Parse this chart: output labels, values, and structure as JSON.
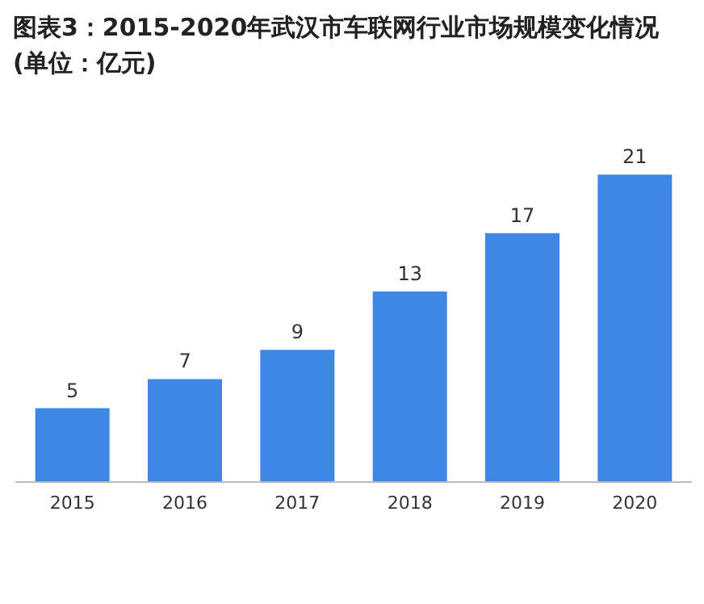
{
  "chart_data": {
    "type": "bar",
    "title": "图表3：2015-2020年武汉市车联网行业市场规模变化情况(单位：亿元)",
    "categories": [
      "2015",
      "2016",
      "2017",
      "2018",
      "2019",
      "2020"
    ],
    "values": [
      5,
      7,
      9,
      13,
      17,
      21
    ],
    "color": "#3f87e5",
    "data_labels": true
  }
}
